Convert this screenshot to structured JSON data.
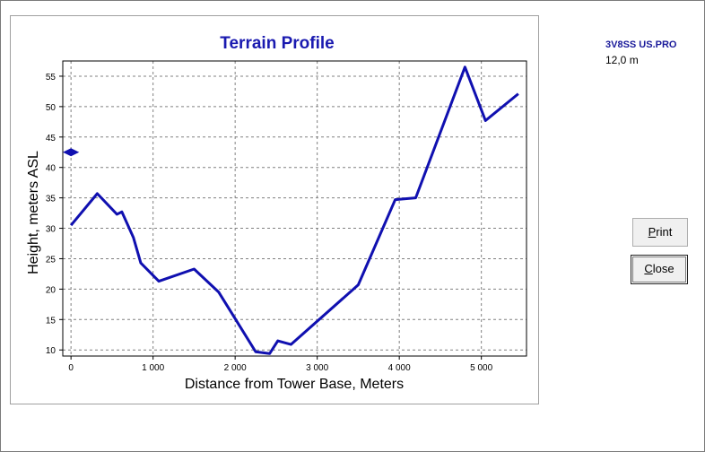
{
  "sidebar": {
    "file_name": "3V8SS US.PRO",
    "antenna_height": "12,0 m"
  },
  "buttons": {
    "print": {
      "label_first": "P",
      "label_rest": "rint"
    },
    "close": {
      "label_first": "C",
      "label_rest": "lose"
    }
  },
  "chart_data": {
    "type": "line",
    "title": "Terrain Profile",
    "xlabel": "Distance from Tower Base, Meters",
    "ylabel": "Height, meters ASL",
    "xlim": [
      -100,
      5550
    ],
    "ylim": [
      9,
      57.5
    ],
    "x_ticks": [
      0,
      1000,
      2000,
      3000,
      4000,
      5000
    ],
    "x_tick_labels": [
      "0",
      "1 000",
      "2 000",
      "3 000",
      "4 000",
      "5 000"
    ],
    "y_ticks": [
      10,
      15,
      20,
      25,
      30,
      35,
      40,
      45,
      50,
      55
    ],
    "y_tick_labels": [
      "10",
      "15",
      "20",
      "25",
      "30",
      "35",
      "40",
      "45",
      "50",
      "55"
    ],
    "grid": true,
    "line_color": "#1010b0",
    "marker": {
      "x": 0,
      "y": 42.5,
      "shape": "diamond"
    },
    "series": [
      {
        "x": [
          0,
          320,
          560,
          620,
          760,
          850,
          1070,
          1500,
          1800,
          2250,
          2420,
          2520,
          2680,
          3500,
          3950,
          4200,
          4800,
          5050,
          5450
        ],
        "y": [
          30.5,
          35.7,
          32.3,
          32.7,
          28.5,
          24.3,
          21.3,
          23.3,
          19.5,
          9.7,
          9.4,
          11.5,
          10.9,
          20.7,
          34.7,
          35.0,
          56.5,
          47.7,
          52.1
        ]
      }
    ]
  }
}
